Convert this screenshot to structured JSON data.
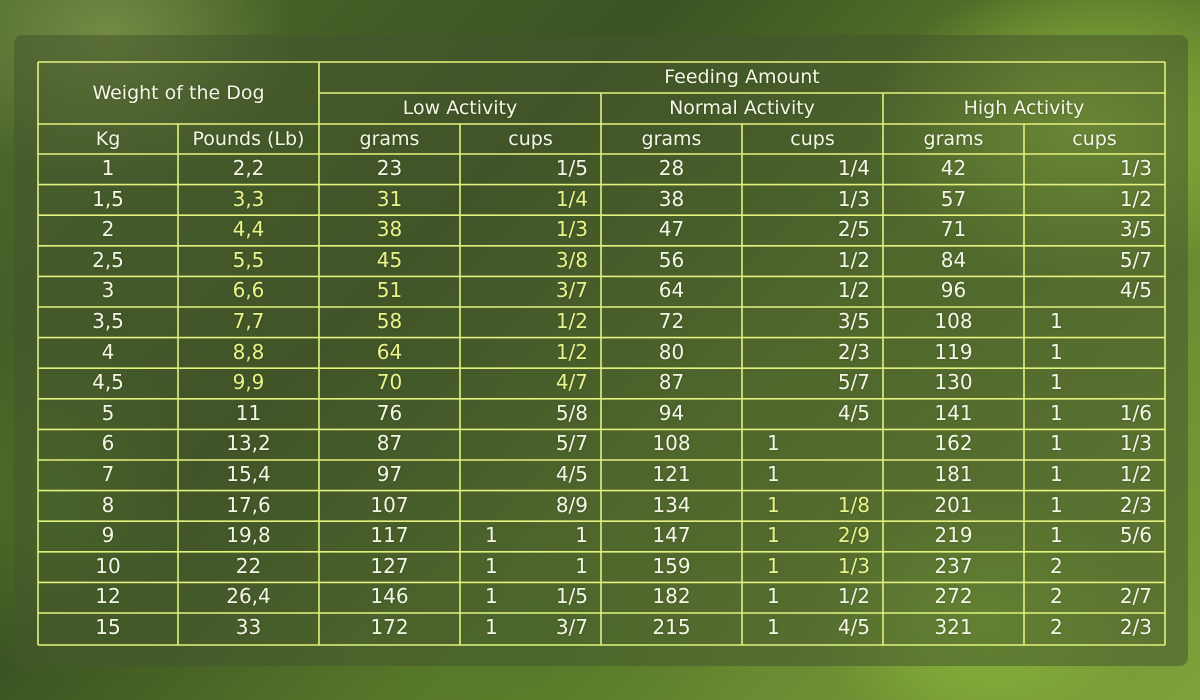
{
  "header": {
    "weight_title": "Weight of the Dog",
    "feeding_title": "Feeding Amount",
    "low_activity": "Low Activity",
    "normal_activity": "Normal Activity",
    "high_activity": "High Activity",
    "kg": "Kg",
    "pounds": "Pounds (Lb)",
    "grams": "grams",
    "cups": "cups"
  },
  "colors": {
    "grid_line": "#e2f27e",
    "text": "#f4f7e6",
    "highlight_text": "#e9f58a"
  },
  "rows": [
    {
      "kg": "1",
      "lb": "2,2",
      "low_g": "23",
      "low_cw": "",
      "low_cf": "1/5",
      "norm_g": "28",
      "norm_cw": "",
      "norm_cf": "1/4",
      "high_g": "42",
      "high_cw": "",
      "high_cf": "1/3"
    },
    {
      "kg": "1,5",
      "lb": "3,3",
      "low_g": "31",
      "low_cw": "",
      "low_cf": "1/4",
      "norm_g": "38",
      "norm_cw": "",
      "norm_cf": "1/3",
      "high_g": "57",
      "high_cw": "",
      "high_cf": "1/2"
    },
    {
      "kg": "2",
      "lb": "4,4",
      "low_g": "38",
      "low_cw": "",
      "low_cf": "1/3",
      "norm_g": "47",
      "norm_cw": "",
      "norm_cf": "2/5",
      "high_g": "71",
      "high_cw": "",
      "high_cf": "3/5"
    },
    {
      "kg": "2,5",
      "lb": "5,5",
      "low_g": "45",
      "low_cw": "",
      "low_cf": "3/8",
      "norm_g": "56",
      "norm_cw": "",
      "norm_cf": "1/2",
      "high_g": "84",
      "high_cw": "",
      "high_cf": "5/7"
    },
    {
      "kg": "3",
      "lb": "6,6",
      "low_g": "51",
      "low_cw": "",
      "low_cf": "3/7",
      "norm_g": "64",
      "norm_cw": "",
      "norm_cf": "1/2",
      "high_g": "96",
      "high_cw": "",
      "high_cf": "4/5"
    },
    {
      "kg": "3,5",
      "lb": "7,7",
      "low_g": "58",
      "low_cw": "",
      "low_cf": "1/2",
      "norm_g": "72",
      "norm_cw": "",
      "norm_cf": "3/5",
      "high_g": "108",
      "high_cw": "1",
      "high_cf": ""
    },
    {
      "kg": "4",
      "lb": "8,8",
      "low_g": "64",
      "low_cw": "",
      "low_cf": "1/2",
      "norm_g": "80",
      "norm_cw": "",
      "norm_cf": "2/3",
      "high_g": "119",
      "high_cw": "1",
      "high_cf": ""
    },
    {
      "kg": "4,5",
      "lb": "9,9",
      "low_g": "70",
      "low_cw": "",
      "low_cf": "4/7",
      "norm_g": "87",
      "norm_cw": "",
      "norm_cf": "5/7",
      "high_g": "130",
      "high_cw": "1",
      "high_cf": ""
    },
    {
      "kg": "5",
      "lb": "11",
      "low_g": "76",
      "low_cw": "",
      "low_cf": "5/8",
      "norm_g": "94",
      "norm_cw": "",
      "norm_cf": "4/5",
      "high_g": "141",
      "high_cw": "1",
      "high_cf": "1/6"
    },
    {
      "kg": "6",
      "lb": "13,2",
      "low_g": "87",
      "low_cw": "",
      "low_cf": "5/7",
      "norm_g": "108",
      "norm_cw": "1",
      "norm_cf": "",
      "high_g": "162",
      "high_cw": "1",
      "high_cf": "1/3"
    },
    {
      "kg": "7",
      "lb": "15,4",
      "low_g": "97",
      "low_cw": "",
      "low_cf": "4/5",
      "norm_g": "121",
      "norm_cw": "1",
      "norm_cf": "",
      "high_g": "181",
      "high_cw": "1",
      "high_cf": "1/2"
    },
    {
      "kg": "8",
      "lb": "17,6",
      "low_g": "107",
      "low_cw": "",
      "low_cf": "8/9",
      "norm_g": "134",
      "norm_cw": "1",
      "norm_cf": "1/8",
      "high_g": "201",
      "high_cw": "1",
      "high_cf": "2/3"
    },
    {
      "kg": "9",
      "lb": "19,8",
      "low_g": "117",
      "low_cw": "1",
      "low_cf": "1",
      "norm_g": "147",
      "norm_cw": "1",
      "norm_cf": "2/9",
      "high_g": "219",
      "high_cw": "1",
      "high_cf": "5/6"
    },
    {
      "kg": "10",
      "lb": "22",
      "low_g": "127",
      "low_cw": "1",
      "low_cf": "1",
      "norm_g": "159",
      "norm_cw": "1",
      "norm_cf": "1/3",
      "high_g": "237",
      "high_cw": "2",
      "high_cf": ""
    },
    {
      "kg": "12",
      "lb": "26,4",
      "low_g": "146",
      "low_cw": "1",
      "low_cf": "1/5",
      "norm_g": "182",
      "norm_cw": "1",
      "norm_cf": "1/2",
      "high_g": "272",
      "high_cw": "2",
      "high_cf": "2/7"
    },
    {
      "kg": "15",
      "lb": "33",
      "low_g": "172",
      "low_cw": "1",
      "low_cf": "3/7",
      "norm_g": "215",
      "norm_cw": "1",
      "norm_cf": "4/5",
      "high_g": "321",
      "high_cw": "2",
      "high_cf": "2/3"
    }
  ]
}
